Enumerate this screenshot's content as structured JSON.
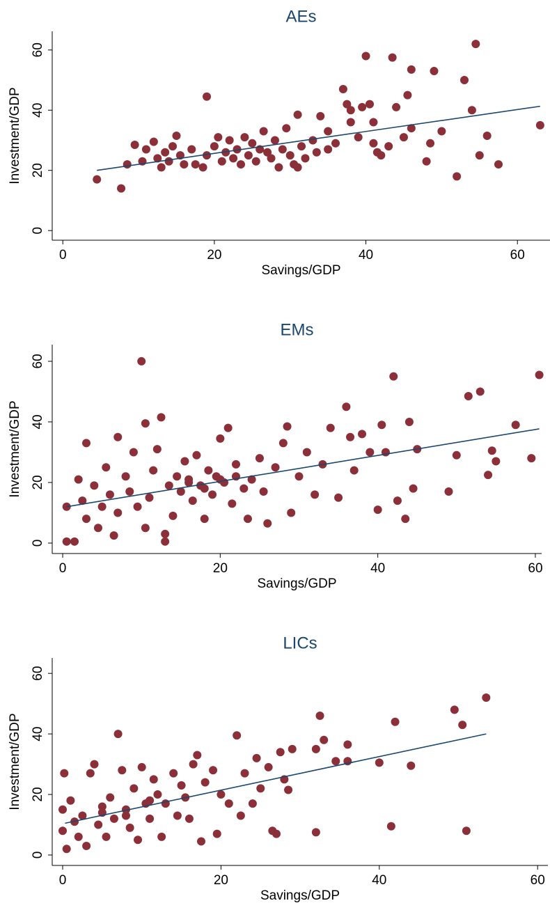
{
  "chart_data": [
    {
      "type": "scatter",
      "title": "AEs",
      "xlabel": "Savings/GDP",
      "ylabel": "Investment/GDP",
      "xlim": [
        -1.4,
        64.3
      ],
      "ylim": [
        -3.2,
        66.2
      ],
      "xticks": [
        0,
        20,
        40,
        60
      ],
      "yticks": [
        0,
        20,
        40,
        60
      ],
      "color": "#8b2f38",
      "line_color": "#1a476f",
      "x": [
        4.5,
        7.7,
        9.5,
        10.5,
        11,
        12,
        12.5,
        13,
        13.5,
        14,
        14.5,
        15,
        15.5,
        16,
        17,
        17.5,
        18.5,
        19,
        19,
        20,
        20.5,
        21,
        21.5,
        22,
        22.5,
        23,
        23.5,
        24,
        24.5,
        25,
        25.5,
        26,
        26.5,
        27,
        27.5,
        28,
        28.5,
        29,
        29.5,
        30,
        30.5,
        31,
        31.5,
        32,
        33,
        33.5,
        34,
        35,
        36,
        37,
        37.5,
        38,
        39,
        39.5,
        40,
        40.5,
        41,
        41.5,
        43,
        43.5,
        44,
        45,
        45.5,
        46,
        46,
        48,
        48.5,
        49,
        50,
        52,
        53,
        54,
        54.5,
        55,
        56,
        57.5,
        63,
        8.5,
        41,
        42,
        31,
        35,
        38
      ],
      "values": [
        17,
        14,
        28.5,
        23,
        27,
        29.5,
        24,
        21,
        26,
        23,
        28,
        31.5,
        25,
        22,
        27,
        22,
        21,
        44.5,
        25,
        28,
        31,
        23,
        26,
        30,
        24,
        27,
        22,
        31,
        25,
        29,
        23,
        27,
        33,
        26,
        24,
        30,
        21,
        27,
        34,
        25,
        22,
        38.5,
        28,
        24,
        30,
        26,
        38,
        33,
        29,
        47,
        42,
        36,
        31,
        41,
        58,
        42,
        36,
        26,
        28,
        57.5,
        41,
        31,
        45,
        53.5,
        34,
        23,
        29,
        53,
        33,
        18,
        50,
        40,
        62,
        25,
        31.5,
        22,
        35,
        22,
        29,
        25,
        21,
        27,
        40
      ],
      "fit": {
        "x": [
          4.5,
          63
        ],
        "values": [
          20,
          41.3
        ]
      }
    },
    {
      "type": "scatter",
      "title": "EMs",
      "xlabel": "Savings/GDP",
      "ylabel": "Investment/GDP",
      "xlim": [
        -1.33,
        60.8
      ],
      "ylim": [
        -3.45,
        65.5
      ],
      "xticks": [
        0,
        20,
        40,
        60
      ],
      "yticks": [
        0,
        20,
        40,
        60
      ],
      "color": "#8b2f38",
      "line_color": "#1a476f",
      "x": [
        0.5,
        0.5,
        1.5,
        2,
        2.5,
        3,
        3,
        4,
        4.5,
        5,
        5.5,
        6,
        6.5,
        7,
        7,
        8,
        8.5,
        9,
        9.5,
        10,
        10.5,
        10.5,
        11,
        11.5,
        12,
        12.5,
        13,
        13,
        13.5,
        14,
        14.5,
        15,
        15.5,
        16,
        16.5,
        17,
        17.5,
        18,
        18.5,
        19,
        19.5,
        20,
        20.5,
        21,
        21.5,
        22,
        23,
        23.5,
        24,
        25,
        25.5,
        26,
        27,
        28,
        28.5,
        29,
        30,
        31,
        32,
        33,
        34,
        35,
        36,
        36.5,
        37,
        38,
        39,
        40,
        40.5,
        41,
        42,
        42.5,
        43.5,
        44,
        44.5,
        45,
        49,
        50,
        51.5,
        53,
        54,
        54.5,
        55,
        57.5,
        59.5,
        60.5,
        18,
        16,
        20,
        22
      ],
      "values": [
        12,
        0.5,
        0.5,
        21,
        14,
        33,
        8,
        19,
        5,
        12,
        25,
        16,
        2.5,
        35,
        10,
        22,
        17,
        30,
        12,
        60,
        39.5,
        5,
        15,
        24,
        31,
        41.5,
        0.5,
        3,
        19,
        9,
        22,
        17,
        27,
        21,
        14,
        29,
        19,
        8,
        24,
        16,
        22,
        34.5,
        20,
        38,
        13,
        26,
        18,
        8,
        21,
        28,
        17,
        6.5,
        25,
        33,
        38.5,
        10,
        22,
        30,
        16,
        26,
        38,
        15,
        45,
        35,
        24,
        36,
        30,
        11,
        39,
        30,
        55,
        14,
        8,
        40,
        18,
        31,
        17,
        29,
        48.5,
        50,
        22.5,
        30.5,
        27,
        39,
        28,
        55.5,
        18,
        20,
        21,
        22
      ],
      "fit": {
        "x": [
          0.5,
          60.5
        ],
        "values": [
          12,
          37.7
        ]
      }
    },
    {
      "type": "scatter",
      "title": "LICs",
      "xlabel": "Savings/GDP",
      "ylabel": "Investment/GDP",
      "xlim": [
        -1.32,
        61.3
      ],
      "ylim": [
        -3.45,
        65.1
      ],
      "xticks": [
        0,
        20,
        40,
        60
      ],
      "yticks": [
        0,
        20,
        40,
        60
      ],
      "color": "#8b2f38",
      "line_color": "#1a476f",
      "x": [
        0,
        0,
        0.2,
        0.5,
        1,
        1.5,
        2,
        2.5,
        3,
        3.5,
        4,
        4.5,
        5,
        5.5,
        6,
        6.5,
        7,
        7.5,
        8,
        8.5,
        9,
        9.5,
        10,
        10.5,
        11,
        11.5,
        12,
        12.5,
        13,
        14,
        14.5,
        15,
        15.5,
        16,
        16.5,
        17,
        17.5,
        18,
        19,
        19.5,
        20,
        21,
        22,
        22.5,
        23,
        24,
        24.5,
        25,
        26,
        26.5,
        27,
        27.5,
        28,
        28.5,
        29,
        32,
        32,
        32.5,
        33,
        34.5,
        36,
        36,
        40,
        41.5,
        42,
        44,
        49.5,
        50.5,
        51,
        53.5,
        5,
        8,
        11
      ],
      "values": [
        15,
        8,
        27,
        2,
        18,
        11,
        6,
        13,
        3,
        27,
        30,
        10,
        16,
        6,
        19,
        12,
        40,
        28,
        15,
        9,
        22,
        5,
        29,
        17,
        12,
        25,
        20,
        6,
        17,
        27,
        13,
        23,
        19,
        12,
        30,
        33,
        4.5,
        24,
        28,
        7,
        20,
        17,
        39.5,
        13,
        27,
        17,
        32,
        22,
        29,
        8,
        7,
        34,
        25,
        21.5,
        35,
        7.5,
        35,
        46,
        38,
        31,
        31,
        36.5,
        30.5,
        9.5,
        44,
        29.5,
        48,
        43,
        8,
        52,
        14,
        13,
        18
      ],
      "fit": {
        "x": [
          0.3,
          53.5
        ],
        "values": [
          10.5,
          40
        ]
      }
    }
  ]
}
